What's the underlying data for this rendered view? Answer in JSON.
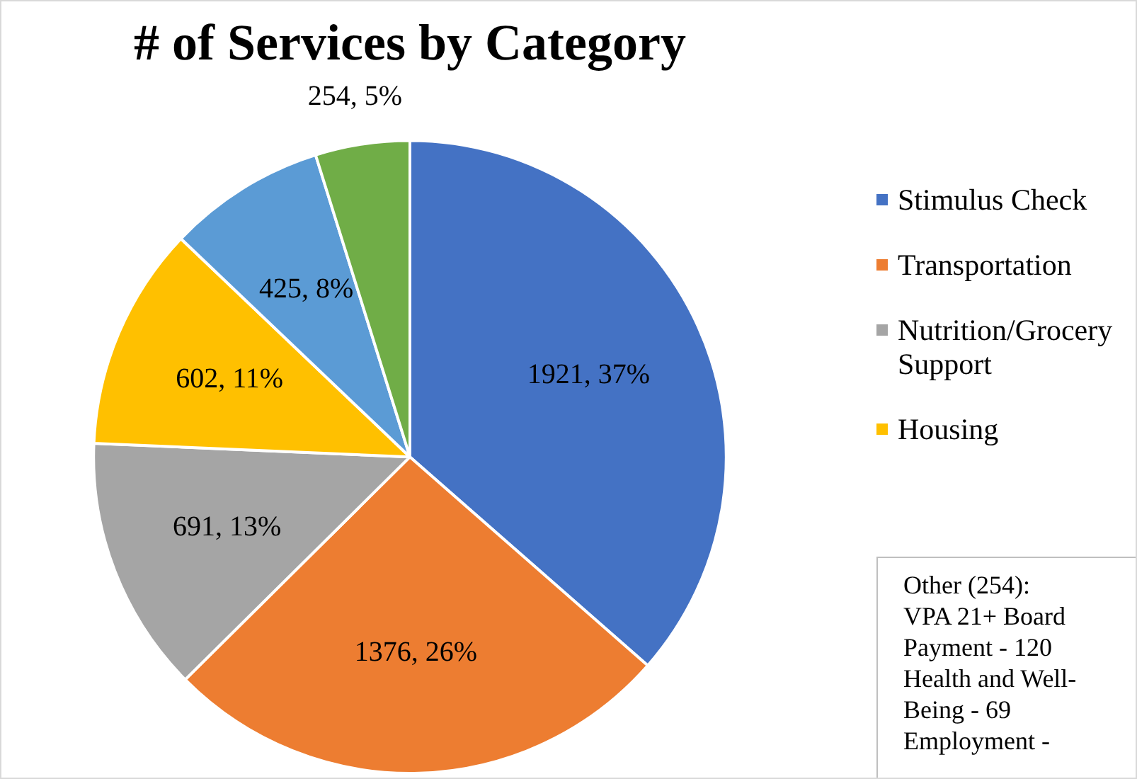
{
  "chart_data": {
    "type": "pie",
    "title": "# of Services by Category",
    "categories": [
      "Stimulus Check",
      "Transportation",
      "Nutrition/Grocery Support",
      "Housing",
      null,
      null
    ],
    "values": [
      1921,
      1376,
      691,
      602,
      425,
      254
    ],
    "colors": [
      "#4472c4",
      "#ed7d31",
      "#a5a5a5",
      "#ffc000",
      "#5b9bd5",
      "#70ad47"
    ],
    "value_labels": [
      "1921, 37%",
      "1376, 26%",
      "691, 13%",
      "602, 11%",
      "425, 8%",
      "254, 5%"
    ],
    "legend": "right",
    "annotations": [
      "Other (254):\nVPA 21+ Board Payment - 120\nHealth and Well-Being - 69\nEmployment -"
    ]
  }
}
